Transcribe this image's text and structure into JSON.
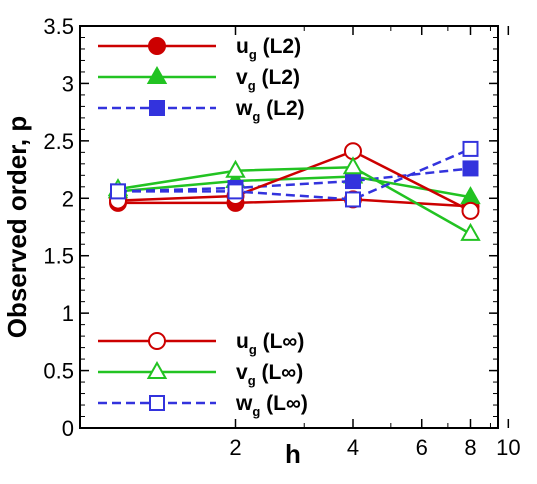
{
  "chart_data": {
    "type": "line",
    "title": "",
    "xlabel": "h",
    "ylabel": "Observed order, p",
    "x_scale": "log",
    "xlim": [
      1,
      10
    ],
    "ylim": [
      0,
      3.5
    ],
    "x_tick_labels": [
      "2",
      "4",
      "6",
      "8",
      "10"
    ],
    "x_ticks": [
      2,
      4,
      6,
      8,
      10
    ],
    "y_ticks": [
      0,
      0.5,
      1,
      1.5,
      2,
      2.5,
      3,
      3.5
    ],
    "y_tick_labels": [
      "0",
      "0.5",
      "1",
      "1.5",
      "2",
      "2.5",
      "3",
      "3.5"
    ],
    "grid": false,
    "legend_placement": [
      "top-left",
      "bottom-left"
    ],
    "series": [
      {
        "name": "u",
        "sub": "g",
        "suffix": " (L2)",
        "color": "#cc0000",
        "dash": "solid",
        "marker": "circle",
        "filled": true,
        "x": [
          1,
          2,
          4,
          8
        ],
        "y": [
          1.96,
          1.96,
          1.99,
          1.93
        ]
      },
      {
        "name": "v",
        "sub": "g",
        "suffix": " (L2)",
        "color": "#22c322",
        "dash": "solid",
        "marker": "triangle",
        "filled": true,
        "x": [
          1,
          2,
          4,
          8
        ],
        "y": [
          2.06,
          2.15,
          2.19,
          2.01
        ]
      },
      {
        "name": "w",
        "sub": "g",
        "suffix": " (L2)",
        "color": "#3333dd",
        "dash": "dashed",
        "marker": "square",
        "filled": true,
        "x": [
          1,
          2,
          4,
          8
        ],
        "y": [
          2.06,
          2.09,
          2.15,
          2.26
        ]
      },
      {
        "name": "u",
        "sub": "g",
        "suffix": " (L∞)",
        "color": "#cc0000",
        "dash": "solid",
        "marker": "circle",
        "filled": false,
        "x": [
          1,
          2,
          4,
          8
        ],
        "y": [
          1.98,
          2.02,
          2.41,
          1.89
        ]
      },
      {
        "name": "v",
        "sub": "g",
        "suffix": " (L∞)",
        "color": "#22c322",
        "dash": "solid",
        "marker": "triangle",
        "filled": false,
        "x": [
          1,
          2,
          4,
          8
        ],
        "y": [
          2.08,
          2.24,
          2.27,
          1.69
        ]
      },
      {
        "name": "w",
        "sub": "g",
        "suffix": " (L∞)",
        "color": "#3333dd",
        "dash": "dashed",
        "marker": "square",
        "filled": false,
        "x": [
          1,
          2,
          4,
          8
        ],
        "y": [
          2.06,
          2.06,
          1.99,
          2.43
        ]
      }
    ]
  }
}
